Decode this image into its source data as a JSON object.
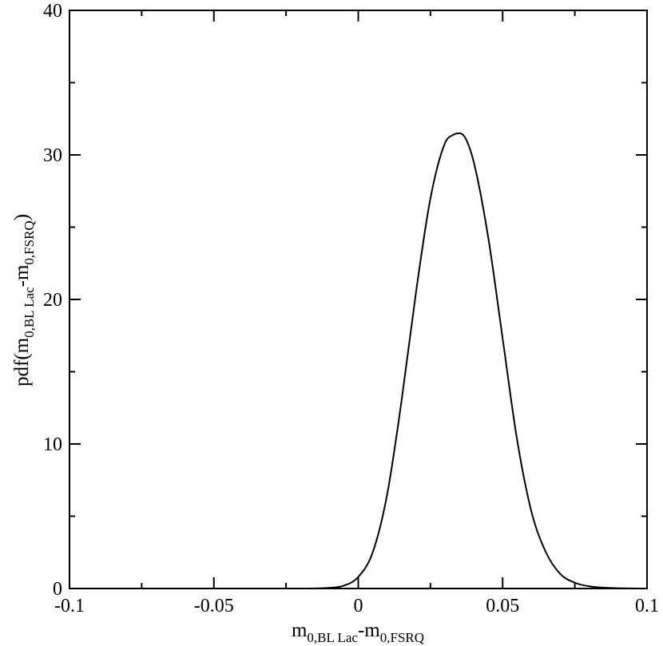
{
  "chart_data": {
    "type": "line",
    "title": "",
    "xlabel": {
      "base1": "m",
      "sub1": "0,BL Lac",
      "mid": "-m",
      "sub2": "0,FSRQ"
    },
    "ylabel": {
      "prefix": "pdf(m",
      "sub1": "0,BL Lac",
      "mid": "-m",
      "sub2": "0,FSRQ",
      "suffix": ")"
    },
    "xlim": [
      -0.1,
      0.1
    ],
    "ylim": [
      0,
      40
    ],
    "xticks": [
      -0.1,
      -0.05,
      0,
      0.05,
      0.1
    ],
    "xtick_labels": [
      "-0.1",
      "-0.05",
      "0",
      "0.05",
      "0.1"
    ],
    "yticks": [
      0,
      10,
      20,
      30,
      40
    ],
    "ytick_labels": [
      "0",
      "10",
      "20",
      "30",
      "40"
    ],
    "grid": false,
    "series": [
      {
        "x": [
          -0.1,
          -0.05,
          -0.02,
          -0.01,
          -0.005,
          0.0,
          0.005,
          0.01,
          0.015,
          0.02,
          0.025,
          0.03,
          0.033,
          0.035,
          0.037,
          0.04,
          0.045,
          0.05,
          0.055,
          0.06,
          0.065,
          0.07,
          0.075,
          0.08,
          0.09,
          0.1
        ],
        "y": [
          0,
          0,
          0,
          0.05,
          0.2,
          0.8,
          2.5,
          6.5,
          13,
          20.5,
          27,
          30.8,
          31.4,
          31.5,
          31.2,
          29.5,
          24.3,
          17.3,
          10.3,
          5.3,
          2.5,
          1.0,
          0.4,
          0.15,
          0.02,
          0
        ]
      }
    ]
  }
}
